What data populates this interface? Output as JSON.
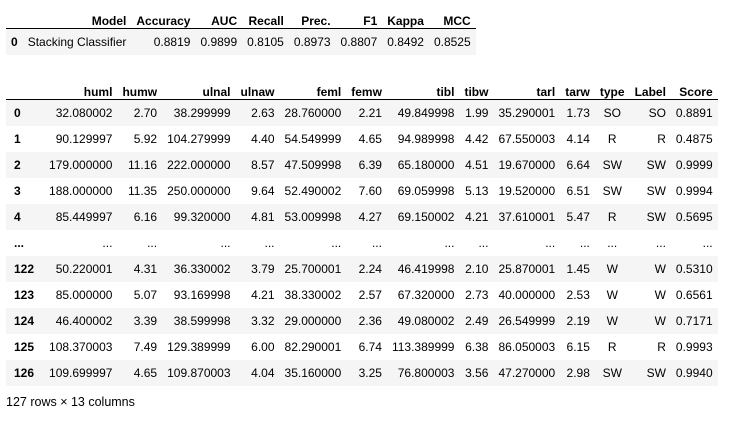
{
  "summary": {
    "columns": [
      "",
      "Model",
      "Accuracy",
      "AUC",
      "Recall",
      "Prec.",
      "F1",
      "Kappa",
      "MCC"
    ],
    "rows": [
      [
        "0",
        "Stacking Classifier",
        "0.8819",
        "0.9899",
        "0.8105",
        "0.8973",
        "0.8807",
        "0.8492",
        "0.8525"
      ]
    ]
  },
  "dataframe": {
    "columns": [
      "",
      "huml",
      "humw",
      "ulnal",
      "ulnaw",
      "feml",
      "femw",
      "tibl",
      "tibw",
      "tarl",
      "tarw",
      "type",
      "Label",
      "Score"
    ],
    "rows": [
      [
        "0",
        "32.080002",
        "2.70",
        "38.299999",
        "2.63",
        "28.760000",
        "2.21",
        "49.849998",
        "1.99",
        "35.290001",
        "1.73",
        "SO",
        "SO",
        "0.8891"
      ],
      [
        "1",
        "90.129997",
        "5.92",
        "104.279999",
        "4.40",
        "54.549999",
        "4.65",
        "94.989998",
        "4.42",
        "67.550003",
        "4.14",
        "R",
        "R",
        "0.4875"
      ],
      [
        "2",
        "179.000000",
        "11.16",
        "222.000000",
        "8.57",
        "47.509998",
        "6.39",
        "65.180000",
        "4.51",
        "19.670000",
        "6.64",
        "SW",
        "SW",
        "0.9999"
      ],
      [
        "3",
        "188.000000",
        "11.35",
        "250.000000",
        "9.64",
        "52.490002",
        "7.60",
        "69.059998",
        "5.13",
        "19.520000",
        "6.51",
        "SW",
        "SW",
        "0.9994"
      ],
      [
        "4",
        "85.449997",
        "6.16",
        "99.320000",
        "4.81",
        "53.009998",
        "4.27",
        "69.150002",
        "4.21",
        "37.610001",
        "5.47",
        "R",
        "SW",
        "0.5695"
      ],
      [
        "...",
        "...",
        "...",
        "...",
        "...",
        "...",
        "...",
        "...",
        "...",
        "...",
        "...",
        "...",
        "...",
        "..."
      ],
      [
        "122",
        "50.220001",
        "4.31",
        "36.330002",
        "3.79",
        "25.700001",
        "2.24",
        "46.419998",
        "2.10",
        "25.870001",
        "1.45",
        "W",
        "W",
        "0.5310"
      ],
      [
        "123",
        "85.000000",
        "5.07",
        "93.169998",
        "4.21",
        "38.330002",
        "2.57",
        "67.320000",
        "2.73",
        "40.000000",
        "2.53",
        "W",
        "W",
        "0.6561"
      ],
      [
        "124",
        "46.400002",
        "3.39",
        "38.599998",
        "3.32",
        "29.000000",
        "2.36",
        "49.080002",
        "2.49",
        "26.549999",
        "2.19",
        "W",
        "W",
        "0.7171"
      ],
      [
        "125",
        "108.370003",
        "7.49",
        "129.389999",
        "6.00",
        "82.290001",
        "6.74",
        "113.389999",
        "6.38",
        "86.050003",
        "6.15",
        "R",
        "R",
        "0.9993"
      ],
      [
        "126",
        "109.699997",
        "4.65",
        "109.870003",
        "4.04",
        "35.160000",
        "3.25",
        "76.800003",
        "3.56",
        "47.270000",
        "2.98",
        "SW",
        "SW",
        "0.9940"
      ]
    ]
  },
  "footer": "127 rows × 13 columns"
}
